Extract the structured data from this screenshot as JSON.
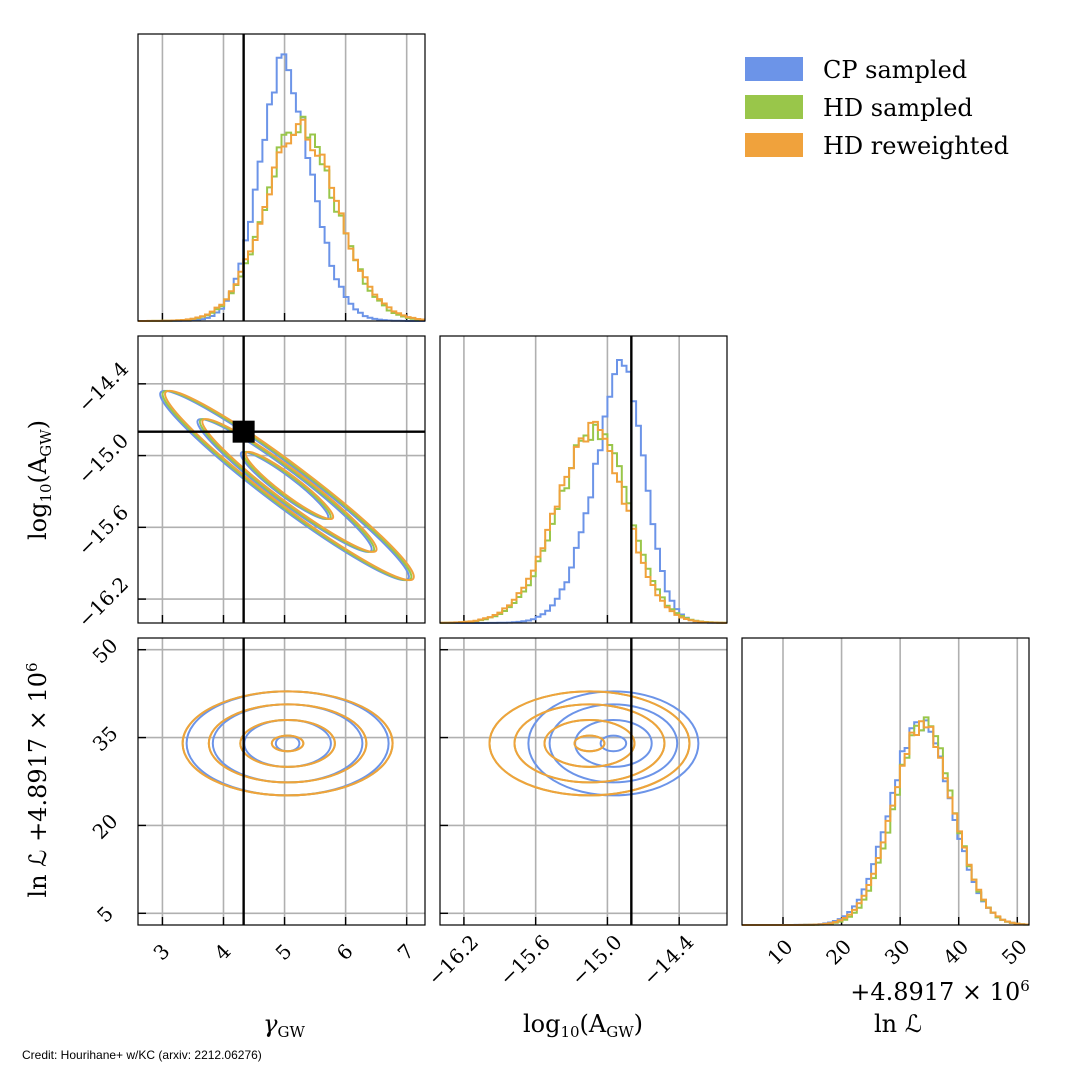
{
  "credit": "Credit: Hourihane+ w/KC (arxiv: 2212.06276)",
  "colors": {
    "cp": "#6c94e8",
    "hd": "#99c64a",
    "hdrw": "#f0a23c",
    "grid": "#b0b0b0",
    "truth": "#000000"
  },
  "chart_data": {
    "type": "corner",
    "params": [
      {
        "name": "gamma_gw",
        "label": "γ",
        "sub": "GW",
        "range": [
          2.6,
          7.3
        ],
        "ticks": [
          3,
          4,
          5,
          6,
          7
        ],
        "tick_labels": [
          "3",
          "4",
          "5",
          "6",
          "7"
        ]
      },
      {
        "name": "log10_A_gw",
        "label": "log",
        "sub10": "10",
        "label2": "(A",
        "sub": "GW",
        "label3": ")",
        "range": [
          -16.4,
          -14.0
        ],
        "ticks": [
          -16.2,
          -15.6,
          -15.0,
          -14.4
        ],
        "tick_labels": [
          "−16.2",
          "−15.6",
          "−15.0",
          "−14.4"
        ]
      },
      {
        "name": "lnL",
        "label": "ln ℒ",
        "offset_label": "+4.8917 × 10",
        "offset_exp": "6",
        "range": [
          3,
          52
        ],
        "ticks": [
          5,
          10,
          20,
          30,
          35,
          40,
          50
        ],
        "tick_labels_x": [
          "10",
          "20",
          "30",
          "40",
          "50"
        ],
        "tick_labels_y": [
          "5",
          "20",
          "35",
          "50"
        ]
      }
    ],
    "truth": {
      "gamma_gw": 4.33,
      "log10_A_gw": -14.8
    },
    "series": [
      {
        "name": "CP sampled",
        "key": "cp",
        "gamma": {
          "mu": 4.7,
          "sd": 0.55,
          "skew": 1.1
        },
        "logA": {
          "mu": -14.72,
          "sd": 0.3,
          "skew": -1.6
        },
        "lnL": {
          "mu": 33.5,
          "sd": 5.2
        }
      },
      {
        "name": "HD sampled",
        "key": "hd",
        "gamma": {
          "mu": 4.9,
          "sd": 0.7,
          "skew": 0.9
        },
        "logA": {
          "mu": -14.9,
          "sd": 0.38,
          "skew": -1.2
        },
        "lnL": {
          "mu": 34,
          "sd": 5.0
        }
      },
      {
        "name": "HD reweighted",
        "key": "hdrw",
        "gamma": {
          "mu": 4.9,
          "sd": 0.72,
          "skew": 0.9
        },
        "logA": {
          "mu": -14.92,
          "sd": 0.38,
          "skew": -1.2
        },
        "lnL": {
          "mu": 33.8,
          "sd": 5.1
        }
      }
    ]
  }
}
